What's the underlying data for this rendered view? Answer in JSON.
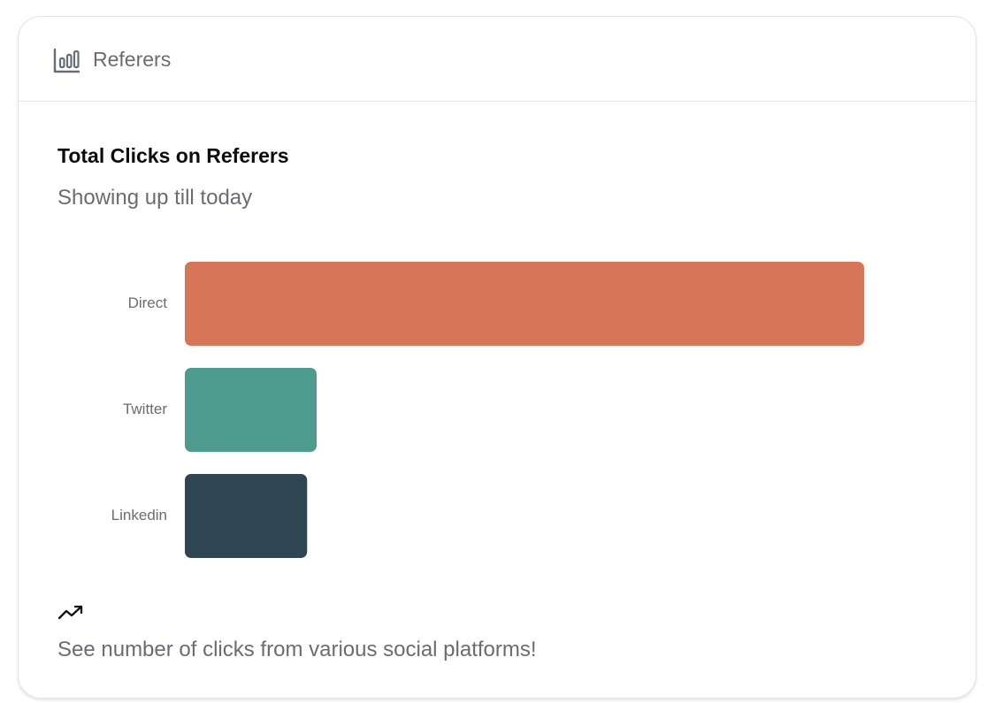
{
  "header": {
    "icon": "bar-chart-icon",
    "title": "Referers"
  },
  "colors": {
    "direct": "#D77559",
    "twitter": "#4E9B8F",
    "linkedin": "#2E4652",
    "muted_text": "#6B6B76"
  },
  "chart_data": {
    "type": "bar",
    "orientation": "horizontal",
    "title": "Total Clicks on Referers",
    "subtitle": "Showing up till today",
    "categories": [
      "Direct",
      "Twitter",
      "Linkedin"
    ],
    "values": [
      100,
      19.4,
      18
    ],
    "colors": [
      "#D77559",
      "#4E9B8F",
      "#2E4652"
    ],
    "xlim": [
      0,
      100
    ],
    "grid": false,
    "legend": "none"
  },
  "footer": {
    "icon": "trending-up-icon",
    "text": "See number of clicks from various social platforms!"
  }
}
